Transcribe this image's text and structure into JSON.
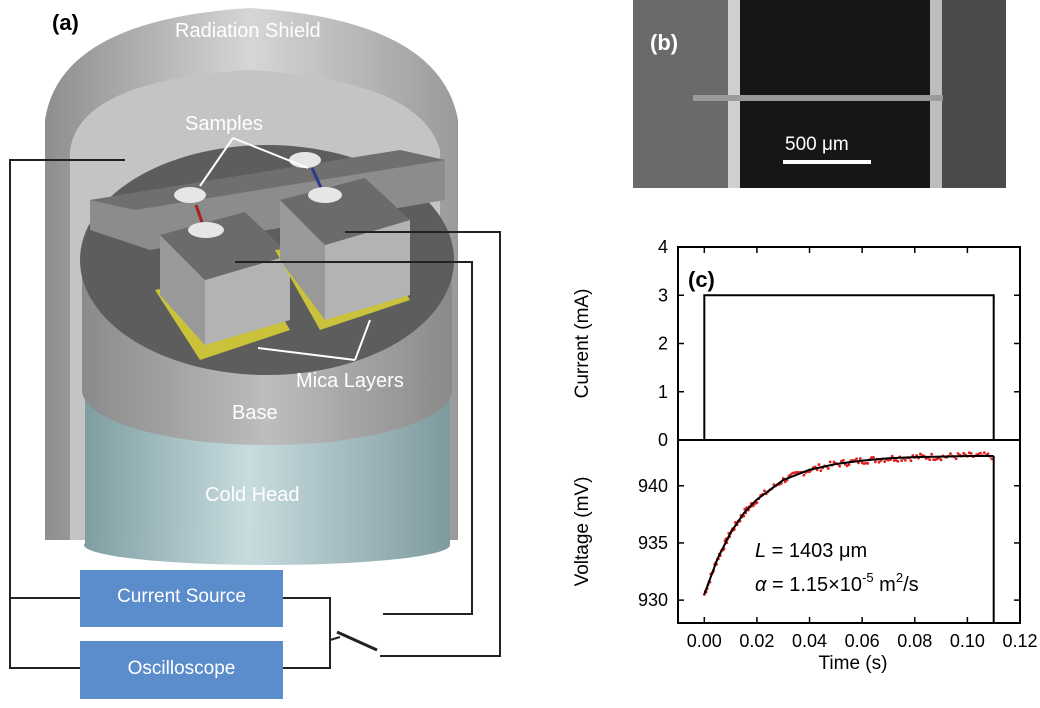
{
  "panel_a": {
    "letter": "(a)",
    "labels": {
      "radiation_shield": "Radiation Shield",
      "samples": "Samples",
      "mica_layers": "Mica Layers",
      "base": "Base",
      "cold_head": "Cold Head",
      "current_source": "Current Source",
      "oscilloscope": "Oscilloscope"
    },
    "colors": {
      "instrument_box": "#5b8ccc",
      "mica": "#c9c23a",
      "cold_head": "#a9c3c7"
    }
  },
  "panel_b": {
    "letter": "(b)",
    "scale_bar": "500 μm"
  },
  "panel_c": {
    "letter": "(c)",
    "x_label": "Time (s)",
    "top_y_label": "Current (mA)",
    "bottom_y_label": "Voltage (mV)",
    "annotation_L": "= 1403 μm",
    "annotation_L_symbol": "L",
    "annotation_alpha_symbol": "α",
    "annotation_alpha_value": "= 1.15×10",
    "annotation_alpha_exp": "-5",
    "annotation_alpha_unit": "m",
    "annotation_alpha_unit_exp": "2",
    "annotation_alpha_tail": "/s"
  },
  "chart_data": [
    {
      "type": "line",
      "ylabel": "Current (mA)",
      "xlim": [
        -0.01,
        0.12
      ],
      "ylim": [
        0,
        4
      ],
      "yticks": [
        "0",
        "1",
        "2",
        "3",
        "4"
      ],
      "series": [
        {
          "x": [
            -0.01,
            0.0,
            0.0,
            0.11,
            0.11
          ],
          "y": [
            0,
            0,
            3,
            3,
            0
          ]
        }
      ]
    },
    {
      "type": "line",
      "xlabel": "Time (s)",
      "ylabel": "Voltage (mV)",
      "xlim": [
        -0.01,
        0.12
      ],
      "ylim": [
        928,
        944
      ],
      "xticks": [
        "0.00",
        "0.02",
        "0.04",
        "0.06",
        "0.08",
        "0.10",
        "0.12"
      ],
      "yticks": [
        "930",
        "935",
        "940"
      ],
      "series": [
        {
          "x": [
            0.0,
            0.005,
            0.01,
            0.015,
            0.02,
            0.03,
            0.04,
            0.05,
            0.06,
            0.07,
            0.08,
            0.09,
            0.1,
            0.11
          ],
          "y": [
            930.5,
            933.6,
            935.9,
            937.6,
            938.8,
            940.5,
            941.4,
            941.9,
            942.2,
            942.4,
            942.5,
            942.55,
            942.6,
            942.6
          ]
        }
      ],
      "data_color": "#e02020",
      "fit_color": "#000000"
    }
  ]
}
